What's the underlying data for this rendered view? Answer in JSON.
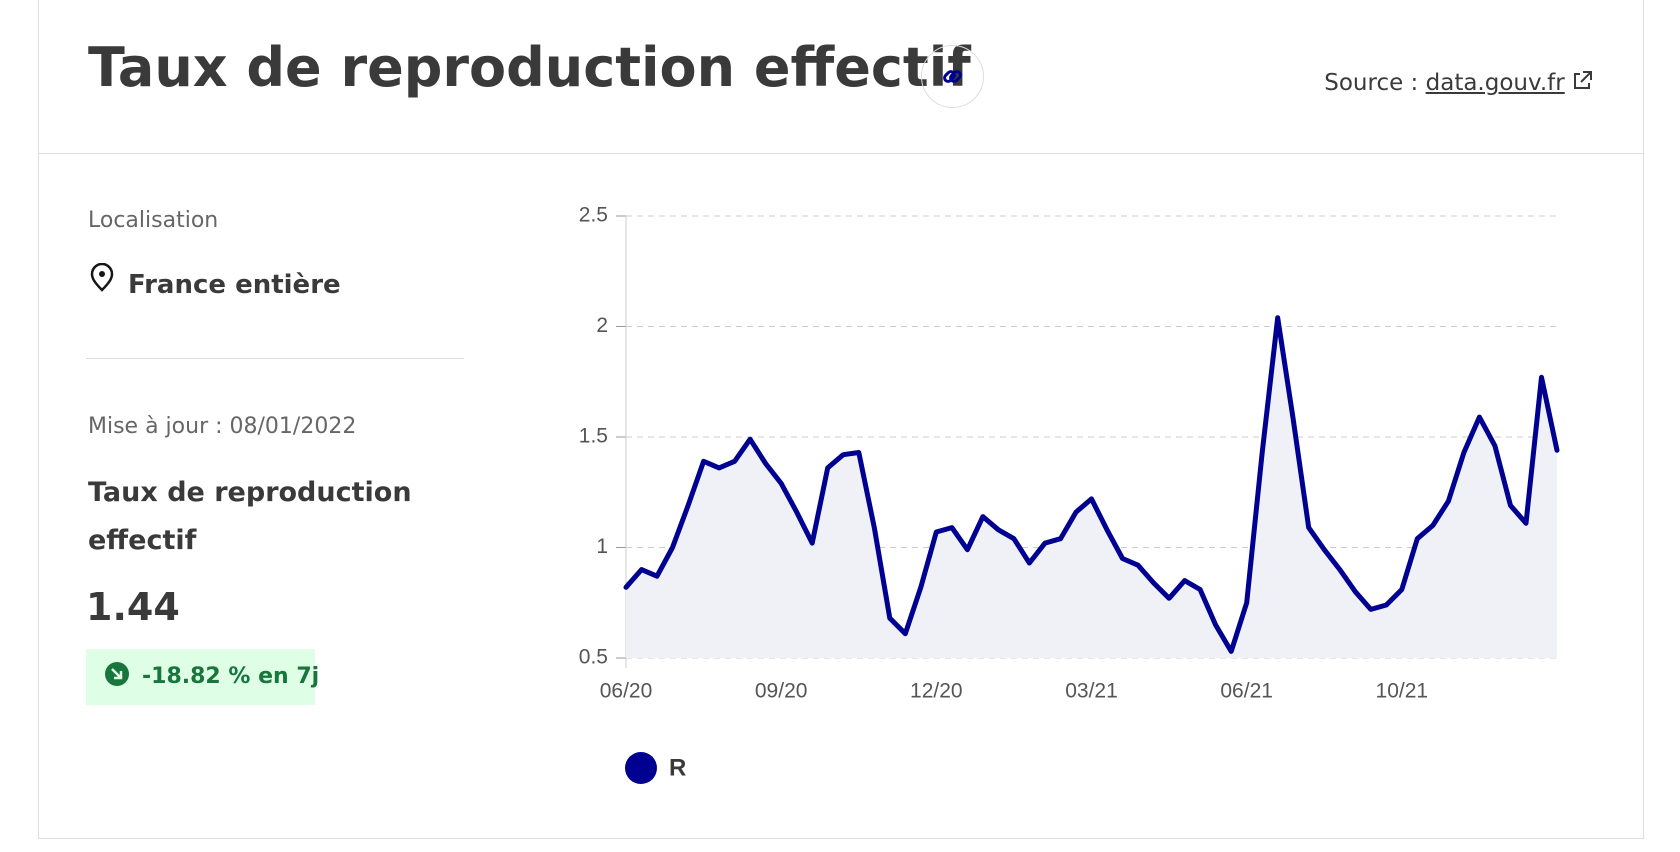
{
  "header": {
    "title": "Taux de reproduction effectif",
    "source_label": "Source :",
    "source_link": "data.gouv.fr"
  },
  "sidebar": {
    "location_label": "Localisation",
    "location": "France entière",
    "update": "Mise à jour : 08/01/2022",
    "metric_title": "Taux de reproduction effectif",
    "metric_value": "1.44",
    "change": "-18.82 % en 7j"
  },
  "chart_data": {
    "type": "line",
    "categories": [
      "06/20",
      null,
      null,
      null,
      null,
      null,
      null,
      null,
      null,
      null,
      "09/20",
      null,
      null,
      null,
      null,
      null,
      null,
      null,
      null,
      null,
      "12/20",
      null,
      null,
      null,
      null,
      null,
      null,
      null,
      null,
      null,
      "03/21",
      null,
      null,
      null,
      null,
      null,
      null,
      null,
      null,
      null,
      "06/21",
      null,
      null,
      null,
      null,
      null,
      null,
      null,
      null,
      null,
      "10/21",
      null,
      null,
      null,
      null,
      null,
      null,
      null,
      null,
      null,
      null
    ],
    "series": [
      {
        "name": "R",
        "color": "#000091",
        "values": [
          0.82,
          0.9,
          0.87,
          1.0,
          1.19,
          1.39,
          1.36,
          1.39,
          1.49,
          1.38,
          1.29,
          1.16,
          1.02,
          1.36,
          1.42,
          1.43,
          1.09,
          0.68,
          0.61,
          0.82,
          1.07,
          1.09,
          0.99,
          1.14,
          1.08,
          1.04,
          0.93,
          1.02,
          1.04,
          1.16,
          1.22,
          1.08,
          0.95,
          0.92,
          0.84,
          0.77,
          0.85,
          0.81,
          0.65,
          0.53,
          0.75,
          1.43,
          2.04,
          1.58,
          1.09,
          0.99,
          0.9,
          0.8,
          0.72,
          0.74,
          0.81,
          1.04,
          1.1,
          1.21,
          1.43,
          1.59,
          1.46,
          1.19,
          1.11,
          1.77,
          1.44
        ]
      }
    ],
    "area_color": "#f0f0f7",
    "ylim": [
      0.5,
      2.5
    ],
    "yticks": [
      0.5,
      1,
      1.5,
      2,
      2.5
    ],
    "grid": true
  }
}
